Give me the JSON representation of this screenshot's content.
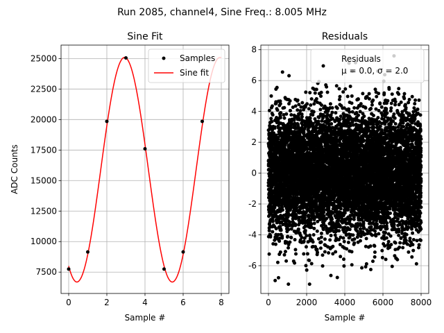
{
  "figure": {
    "suptitle": "Run 2085, channel4, Sine Freq.: 8.005 MHz"
  },
  "chart_data": [
    {
      "type": "line",
      "title": "Sine Fit",
      "xlabel": "Sample #",
      "ylabel": "ADC Counts",
      "xlim": [
        -0.4,
        8.4
      ],
      "ylim": [
        5750,
        26100
      ],
      "xticks": [
        0,
        2,
        4,
        6,
        8
      ],
      "yticks": [
        7500,
        10000,
        12500,
        15000,
        17500,
        20000,
        22500,
        25000
      ],
      "grid": true,
      "legend_position": "top-right",
      "series": [
        {
          "name": "Samples",
          "kind": "scatter",
          "color": "#000000",
          "x": [
            0,
            1,
            2,
            3,
            4,
            5,
            6,
            7
          ],
          "y": [
            7750,
            9150,
            19850,
            25050,
            17600,
            7750,
            9150,
            19850
          ]
        },
        {
          "name": "Sine fit",
          "kind": "line",
          "color": "#ff0000",
          "model": {
            "offset": 15890,
            "amplitude": 9200,
            "period_samples": 5,
            "phase_peak_sample": 2.93
          },
          "x_range": [
            0,
            8
          ]
        }
      ]
    },
    {
      "type": "scatter",
      "title": "Residuals",
      "xlabel": "Sample #",
      "ylabel": "",
      "xlim": [
        -400,
        8400
      ],
      "ylim": [
        -7.8,
        8.3
      ],
      "xticks": [
        0,
        2000,
        4000,
        6000,
        8000
      ],
      "yticks": [
        -6,
        -4,
        -2,
        0,
        2,
        4,
        6,
        8
      ],
      "grid": true,
      "legend_position": "top-right",
      "series": [
        {
          "name": "Residuals",
          "color": "#000000",
          "n_points": 8000,
          "mean": 0.0,
          "std": 2.0
        }
      ],
      "legend_entries": [
        "Residuals",
        "μ = 0.0, σ = 2.0"
      ]
    }
  ]
}
